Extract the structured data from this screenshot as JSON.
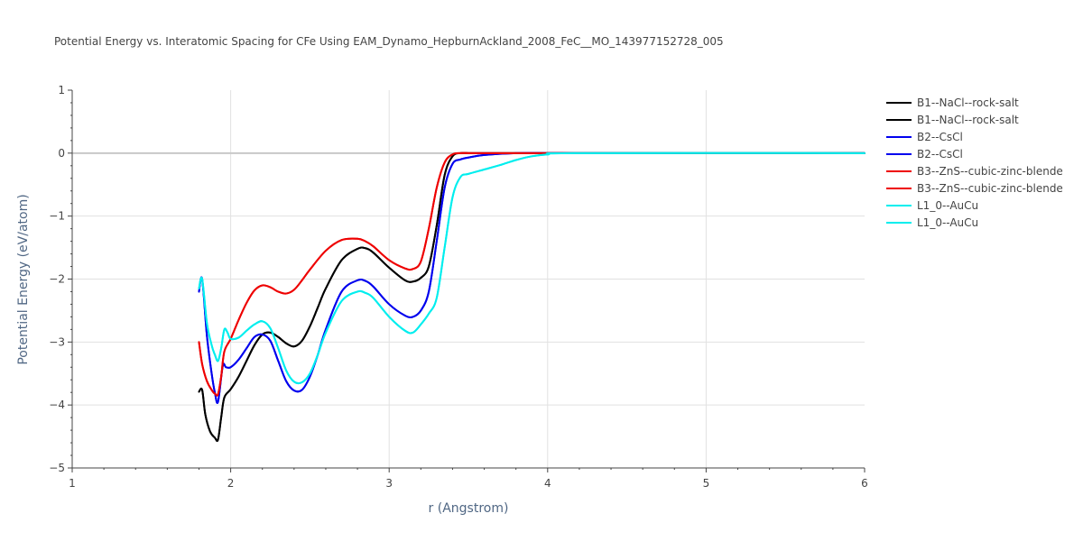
{
  "chart_data": {
    "type": "line",
    "title": "Potential Energy vs. Interatomic Spacing for CFe Using EAM_Dynamo_HepburnAckland_2008_FeC__MO_143977152728_005",
    "xlabel": "r (Angstrom)",
    "ylabel": "Potential Energy (eV/atom)",
    "xlim": [
      1,
      6
    ],
    "ylim": [
      -5,
      1
    ],
    "xticks": [
      1,
      2,
      3,
      4,
      5,
      6
    ],
    "yticks": [
      -5,
      -4,
      -3,
      -2,
      -1,
      0,
      1
    ],
    "ytick_labels": [
      "−5",
      "−4",
      "−3",
      "−2",
      "−1",
      "0",
      "1"
    ],
    "grid": true,
    "legend_position": "right",
    "series": [
      {
        "name": "B1--NaCl--rock-salt",
        "color": "#000000",
        "x": [
          1.8,
          1.82,
          1.84,
          1.87,
          1.9,
          1.92,
          1.94,
          1.96,
          2.0,
          2.05,
          2.1,
          2.15,
          2.2,
          2.25,
          2.3,
          2.35,
          2.4,
          2.45,
          2.5,
          2.55,
          2.6,
          2.7,
          2.8,
          2.85,
          2.9,
          3.0,
          3.1,
          3.15,
          3.2,
          3.25,
          3.3,
          3.35,
          3.4,
          3.45,
          3.5,
          3.6,
          3.8,
          4.0,
          4.2,
          6.0
        ],
        "y": [
          -3.79,
          -3.76,
          -4.15,
          -4.42,
          -4.52,
          -4.55,
          -4.2,
          -3.88,
          -3.75,
          -3.55,
          -3.3,
          -3.05,
          -2.88,
          -2.85,
          -2.92,
          -3.02,
          -3.07,
          -2.98,
          -2.75,
          -2.45,
          -2.15,
          -1.7,
          -1.52,
          -1.51,
          -1.58,
          -1.82,
          -2.02,
          -2.04,
          -1.98,
          -1.8,
          -1.15,
          -0.35,
          -0.05,
          0,
          0,
          0,
          0,
          0,
          0,
          0
        ]
      },
      {
        "name": "B1--NaCl--rock-salt",
        "color": "#000000",
        "x": [
          1.8,
          1.82,
          1.84,
          1.87,
          1.9,
          1.92,
          1.94,
          1.96,
          2.0,
          2.05,
          2.1,
          2.15,
          2.2,
          2.25,
          2.3,
          2.35,
          2.4,
          2.45,
          2.5,
          2.55,
          2.6,
          2.7,
          2.8,
          2.85,
          2.9,
          3.0,
          3.1,
          3.15,
          3.2,
          3.25,
          3.3,
          3.35,
          3.4,
          3.45,
          3.5,
          3.6,
          3.8,
          4.0,
          4.2,
          6.0
        ],
        "y": [
          -3.79,
          -3.76,
          -4.15,
          -4.42,
          -4.52,
          -4.55,
          -4.2,
          -3.88,
          -3.75,
          -3.55,
          -3.3,
          -3.05,
          -2.88,
          -2.85,
          -2.92,
          -3.02,
          -3.07,
          -2.98,
          -2.75,
          -2.45,
          -2.15,
          -1.7,
          -1.52,
          -1.51,
          -1.58,
          -1.82,
          -2.02,
          -2.04,
          -1.98,
          -1.8,
          -1.15,
          -0.35,
          -0.05,
          0,
          0,
          0,
          0,
          0,
          0,
          0
        ]
      },
      {
        "name": "B2--CsCl",
        "color": "#0000ee",
        "x": [
          1.8,
          1.82,
          1.85,
          1.88,
          1.9,
          1.92,
          1.95,
          1.97,
          2.0,
          2.05,
          2.1,
          2.15,
          2.2,
          2.25,
          2.3,
          2.35,
          2.4,
          2.45,
          2.5,
          2.55,
          2.6,
          2.7,
          2.8,
          2.85,
          2.9,
          3.0,
          3.1,
          3.15,
          3.2,
          3.25,
          3.3,
          3.35,
          3.4,
          3.45,
          3.5,
          3.6,
          3.8,
          4.0,
          4.2,
          6.0
        ],
        "y": [
          -2.2,
          -2.0,
          -2.9,
          -3.5,
          -3.8,
          -3.95,
          -3.38,
          -3.4,
          -3.4,
          -3.28,
          -3.1,
          -2.92,
          -2.88,
          -2.98,
          -3.3,
          -3.62,
          -3.77,
          -3.76,
          -3.55,
          -3.2,
          -2.8,
          -2.2,
          -2.02,
          -2.03,
          -2.12,
          -2.4,
          -2.58,
          -2.6,
          -2.5,
          -2.2,
          -1.4,
          -0.55,
          -0.17,
          -0.1,
          -0.07,
          -0.03,
          0,
          0,
          0,
          0
        ]
      },
      {
        "name": "B2--CsCl",
        "color": "#0000ee",
        "x": [
          1.8,
          1.82,
          1.85,
          1.88,
          1.9,
          1.92,
          1.95,
          1.97,
          2.0,
          2.05,
          2.1,
          2.15,
          2.2,
          2.25,
          2.3,
          2.35,
          2.4,
          2.45,
          2.5,
          2.55,
          2.6,
          2.7,
          2.8,
          2.85,
          2.9,
          3.0,
          3.1,
          3.15,
          3.2,
          3.25,
          3.3,
          3.35,
          3.4,
          3.45,
          3.5,
          3.6,
          3.8,
          4.0,
          4.2,
          6.0
        ],
        "y": [
          -2.2,
          -2.0,
          -2.9,
          -3.5,
          -3.8,
          -3.95,
          -3.38,
          -3.4,
          -3.4,
          -3.28,
          -3.1,
          -2.92,
          -2.88,
          -2.98,
          -3.3,
          -3.62,
          -3.77,
          -3.76,
          -3.55,
          -3.2,
          -2.8,
          -2.2,
          -2.02,
          -2.03,
          -2.12,
          -2.4,
          -2.58,
          -2.6,
          -2.5,
          -2.2,
          -1.4,
          -0.55,
          -0.17,
          -0.1,
          -0.07,
          -0.03,
          0,
          0,
          0,
          0
        ]
      },
      {
        "name": "B3--ZnS--cubic-zinc-blende",
        "color": "#ee0000",
        "x": [
          1.8,
          1.82,
          1.85,
          1.88,
          1.9,
          1.92,
          1.94,
          1.96,
          2.0,
          2.05,
          2.1,
          2.15,
          2.2,
          2.25,
          2.3,
          2.35,
          2.4,
          2.45,
          2.5,
          2.6,
          2.7,
          2.8,
          2.85,
          2.9,
          3.0,
          3.1,
          3.15,
          3.2,
          3.25,
          3.3,
          3.35,
          3.4,
          3.45,
          3.5,
          3.6,
          3.8,
          4.0,
          6.0
        ],
        "y": [
          -3.0,
          -3.35,
          -3.62,
          -3.76,
          -3.82,
          -3.83,
          -3.55,
          -3.15,
          -2.95,
          -2.65,
          -2.38,
          -2.18,
          -2.1,
          -2.13,
          -2.2,
          -2.23,
          -2.17,
          -2.02,
          -1.85,
          -1.55,
          -1.38,
          -1.36,
          -1.4,
          -1.48,
          -1.7,
          -1.83,
          -1.84,
          -1.72,
          -1.2,
          -0.55,
          -0.15,
          -0.02,
          0,
          0,
          0,
          0,
          0,
          0
        ]
      },
      {
        "name": "B3--ZnS--cubic-zinc-blende",
        "color": "#ee0000",
        "x": [
          1.8,
          1.82,
          1.85,
          1.88,
          1.9,
          1.92,
          1.94,
          1.96,
          2.0,
          2.05,
          2.1,
          2.15,
          2.2,
          2.25,
          2.3,
          2.35,
          2.4,
          2.45,
          2.5,
          2.6,
          2.7,
          2.8,
          2.85,
          2.9,
          3.0,
          3.1,
          3.15,
          3.2,
          3.25,
          3.3,
          3.35,
          3.4,
          3.45,
          3.5,
          3.6,
          3.8,
          4.0,
          6.0
        ],
        "y": [
          -3.0,
          -3.35,
          -3.62,
          -3.76,
          -3.82,
          -3.83,
          -3.55,
          -3.15,
          -2.95,
          -2.65,
          -2.38,
          -2.18,
          -2.1,
          -2.13,
          -2.2,
          -2.23,
          -2.17,
          -2.02,
          -1.85,
          -1.55,
          -1.38,
          -1.36,
          -1.4,
          -1.48,
          -1.7,
          -1.83,
          -1.84,
          -1.72,
          -1.2,
          -0.55,
          -0.15,
          -0.02,
          0,
          0,
          0,
          0,
          0,
          0
        ]
      },
      {
        "name": "L1_0--AuCu",
        "color": "#00eeee",
        "x": [
          1.8,
          1.82,
          1.85,
          1.88,
          1.9,
          1.92,
          1.94,
          1.96,
          1.98,
          2.0,
          2.05,
          2.1,
          2.15,
          2.2,
          2.25,
          2.3,
          2.35,
          2.4,
          2.45,
          2.5,
          2.55,
          2.6,
          2.7,
          2.8,
          2.85,
          2.9,
          3.0,
          3.1,
          3.15,
          3.2,
          3.25,
          3.3,
          3.35,
          3.4,
          3.45,
          3.5,
          3.6,
          3.7,
          3.8,
          3.9,
          4.0,
          4.2,
          6.0
        ],
        "y": [
          -2.15,
          -2.0,
          -2.7,
          -3.05,
          -3.2,
          -3.3,
          -3.1,
          -2.8,
          -2.85,
          -2.95,
          -2.93,
          -2.82,
          -2.72,
          -2.67,
          -2.78,
          -3.1,
          -3.45,
          -3.63,
          -3.64,
          -3.5,
          -3.2,
          -2.85,
          -2.35,
          -2.2,
          -2.22,
          -2.3,
          -2.6,
          -2.82,
          -2.85,
          -2.72,
          -2.55,
          -2.3,
          -1.5,
          -0.7,
          -0.38,
          -0.33,
          -0.26,
          -0.19,
          -0.11,
          -0.05,
          -0.02,
          0,
          0
        ]
      },
      {
        "name": "L1_0--AuCu",
        "color": "#00eeee",
        "x": [
          1.8,
          1.82,
          1.85,
          1.88,
          1.9,
          1.92,
          1.94,
          1.96,
          1.98,
          2.0,
          2.05,
          2.1,
          2.15,
          2.2,
          2.25,
          2.3,
          2.35,
          2.4,
          2.45,
          2.5,
          2.55,
          2.6,
          2.7,
          2.8,
          2.85,
          2.9,
          3.0,
          3.1,
          3.15,
          3.2,
          3.25,
          3.3,
          3.35,
          3.4,
          3.45,
          3.5,
          3.6,
          3.7,
          3.8,
          3.9,
          4.0,
          4.2,
          6.0
        ],
        "y": [
          -2.15,
          -2.0,
          -2.7,
          -3.05,
          -3.2,
          -3.3,
          -3.1,
          -2.8,
          -2.85,
          -2.95,
          -2.93,
          -2.82,
          -2.72,
          -2.67,
          -2.78,
          -3.1,
          -3.45,
          -3.63,
          -3.64,
          -3.5,
          -3.2,
          -2.85,
          -2.35,
          -2.2,
          -2.22,
          -2.3,
          -2.6,
          -2.82,
          -2.85,
          -2.72,
          -2.55,
          -2.3,
          -1.5,
          -0.7,
          -0.38,
          -0.33,
          -0.26,
          -0.19,
          -0.11,
          -0.05,
          -0.02,
          0,
          0
        ]
      }
    ]
  }
}
